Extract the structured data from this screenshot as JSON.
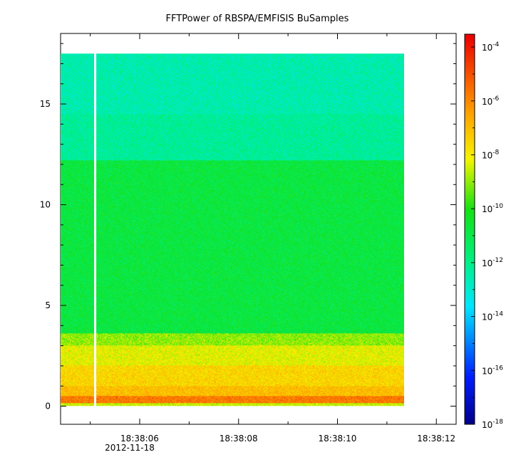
{
  "chart_data": {
    "type": "heatmap",
    "title": "FFTPower of RBSPA/EMFISIS  BuSamples",
    "xlabel": "",
    "ylabel": "",
    "x_ticks": [
      "18:38:06",
      "18:38:08",
      "18:38:10",
      "18:38:12"
    ],
    "x_sub_label": "2012-11-18",
    "xlim_seconds": [
      4.4,
      12.4
    ],
    "data_time_range_seconds": [
      4.4,
      11.35
    ],
    "gap_time_seconds": 5.1,
    "y_ticks": [
      0,
      5,
      10,
      15
    ],
    "ylim": [
      -0.9,
      18.5
    ],
    "data_y_range": [
      0,
      17.5
    ],
    "colorbar": {
      "scale": "log",
      "range": [
        1e-18,
        0.0003
      ],
      "tick_base": "10",
      "tick_exponents": [
        "-18",
        "-16",
        "-14",
        "-12",
        "-10",
        "-8",
        "-6",
        "-4"
      ],
      "colormap": "rainbow"
    },
    "bands": [
      {
        "y_range": [
          0.0,
          0.15
        ],
        "log10_power": -8.5
      },
      {
        "y_range": [
          0.15,
          0.5
        ],
        "log10_power": -5.7
      },
      {
        "y_range": [
          0.5,
          1.0
        ],
        "log10_power": -7.0
      },
      {
        "y_range": [
          1.0,
          2.0
        ],
        "log10_power": -7.5
      },
      {
        "y_range": [
          2.0,
          3.0
        ],
        "log10_power": -8.2
      },
      {
        "y_range": [
          3.0,
          3.6
        ],
        "log10_power": -9.0
      },
      {
        "y_range": [
          3.6,
          12.2
        ],
        "log10_power": -10.8
      },
      {
        "y_range": [
          12.2,
          14.5
        ],
        "log10_power": -12.2
      },
      {
        "y_range": [
          14.5,
          17.5
        ],
        "log10_power": -12.5
      }
    ]
  }
}
